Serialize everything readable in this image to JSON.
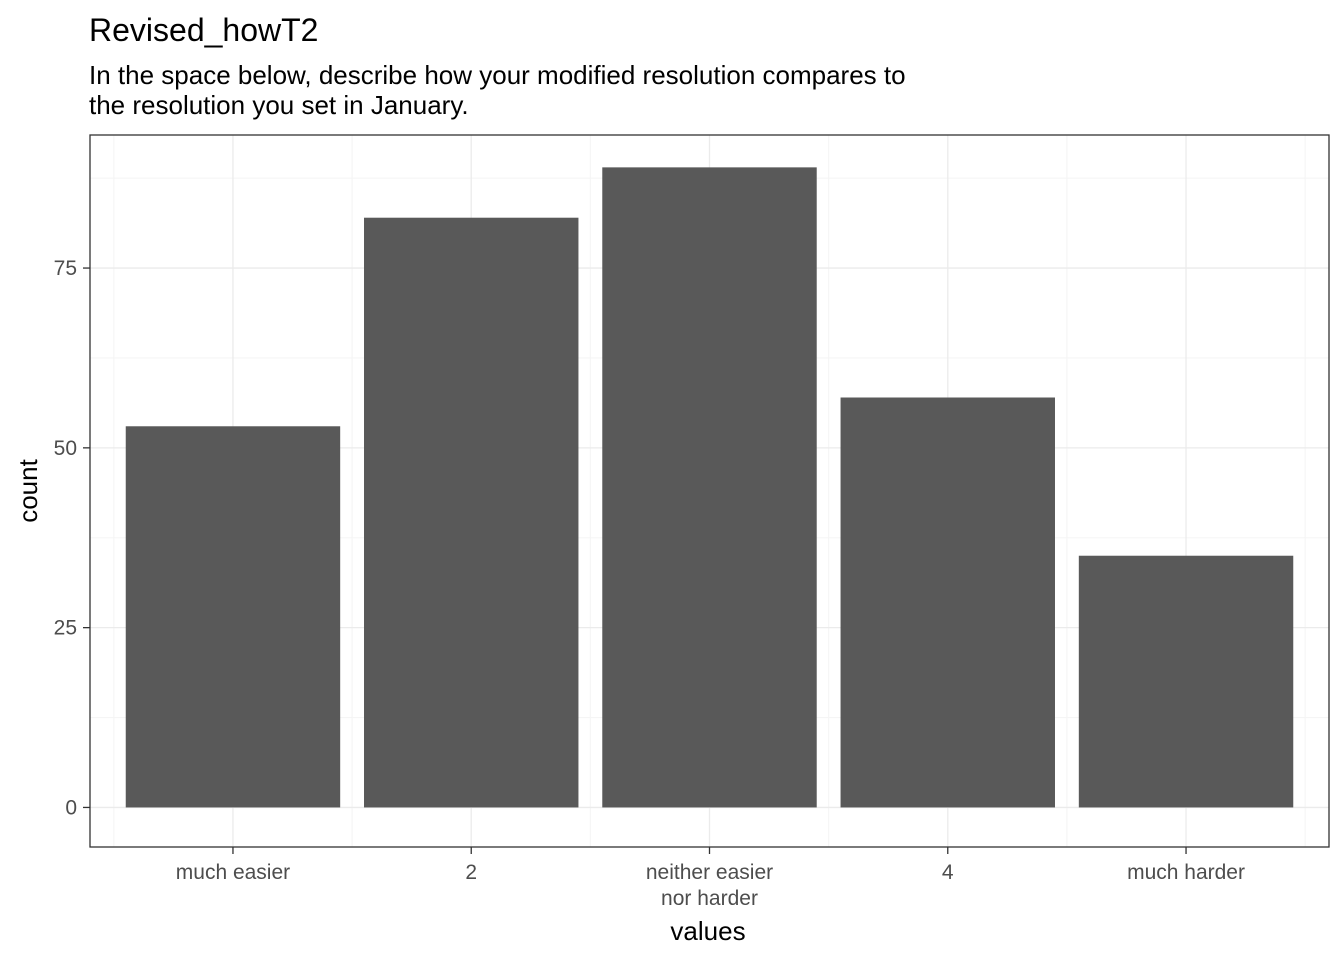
{
  "chart_data": {
    "type": "bar",
    "title": "Revised_howT2",
    "subtitle": [
      "In the space below, describe how your modified resolution compares to",
      "the resolution you set in January."
    ],
    "categories": [
      [
        "much easier"
      ],
      [
        "2"
      ],
      [
        "neither easier",
        "nor harder"
      ],
      [
        "4"
      ],
      [
        "much harder"
      ]
    ],
    "values": [
      53,
      82,
      89,
      57,
      35
    ],
    "xlabel": "values",
    "ylabel": "count",
    "ylim": [
      -5.5,
      93.5
    ],
    "yticks": [
      0,
      25,
      50,
      75
    ],
    "grid": true,
    "colors": {
      "bar": "#595959",
      "grid_major": "#ebebeb",
      "grid_minor": "#f5f5f5",
      "panel_border": "#333333",
      "tick_text": "#4d4d4d"
    }
  }
}
